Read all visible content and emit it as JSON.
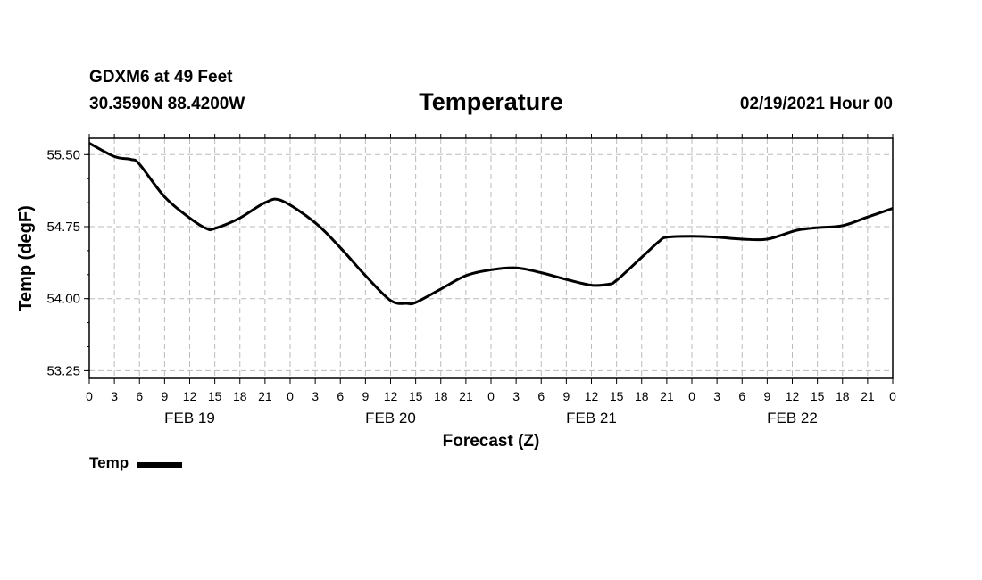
{
  "header": {
    "station": "GDXM6 at 49 Feet",
    "coordinates": "30.3590N 88.4200W",
    "title": "Temperature",
    "datetime": "02/19/2021 Hour 00"
  },
  "legend": {
    "label": "Temp"
  },
  "chart_data": {
    "type": "line",
    "title": "Temperature",
    "xlabel": "Forecast (Z)",
    "ylabel": "Temp (degF)",
    "xlim": [
      0,
      96
    ],
    "ylim": [
      53.17,
      55.67
    ],
    "y_ticks": [
      "53.25",
      "54.00",
      "54.75",
      "55.50"
    ],
    "y_tick_values": [
      53.25,
      54.0,
      54.75,
      55.5
    ],
    "x_tick_labels": [
      "0",
      "3",
      "6",
      "9",
      "12",
      "15",
      "18",
      "21",
      "0",
      "3",
      "6",
      "9",
      "12",
      "15",
      "18",
      "21",
      "0",
      "3",
      "6",
      "9",
      "12",
      "15",
      "18",
      "21",
      "0",
      "3",
      "6",
      "9",
      "12",
      "15",
      "18",
      "21",
      "0"
    ],
    "date_labels": [
      {
        "hour": 12,
        "label": "FEB 19"
      },
      {
        "hour": 36,
        "label": "FEB 20"
      },
      {
        "hour": 60,
        "label": "FEB 21"
      },
      {
        "hour": 84,
        "label": "FEB 22"
      }
    ],
    "grid": true,
    "series": [
      {
        "name": "Temp",
        "color": "#000000",
        "x": [
          0,
          3,
          5,
          6,
          9,
          12,
          14,
          15,
          18,
          21,
          23,
          27,
          30,
          33,
          36,
          38,
          39,
          42,
          45,
          48,
          51,
          54,
          57,
          60,
          62,
          63,
          66,
          68,
          69,
          72,
          75,
          78,
          81,
          84,
          85,
          87,
          90,
          93,
          96
        ],
        "values": [
          55.62,
          55.48,
          55.45,
          55.4,
          55.06,
          54.84,
          54.73,
          54.73,
          54.84,
          55.0,
          55.02,
          54.79,
          54.53,
          54.24,
          53.98,
          53.95,
          53.96,
          54.1,
          54.24,
          54.3,
          54.32,
          54.27,
          54.2,
          54.14,
          54.15,
          54.19,
          54.43,
          54.59,
          54.64,
          54.65,
          54.64,
          54.62,
          54.62,
          54.7,
          54.72,
          54.74,
          54.76,
          54.85,
          54.94
        ]
      }
    ]
  }
}
